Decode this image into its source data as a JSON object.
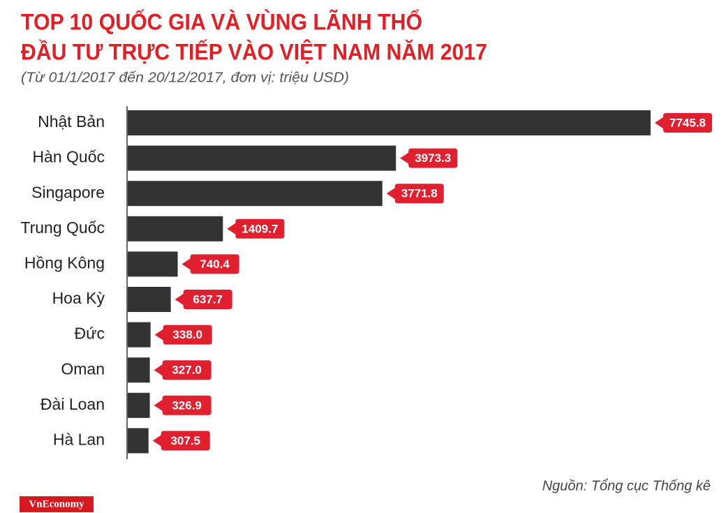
{
  "chart_data": {
    "type": "barh",
    "title": [
      "TOP 10 QUỐC GIA VÀ VÙNG LÃNH THỔ",
      "ĐẦU TƯ TRỰC TIẾP VÀO VIỆT NAM NĂM 2017"
    ],
    "subtitle": "(Từ 01/1/2017 đến 20/12/2017, đơn vị: triệu USD)",
    "categories": [
      "Nhật Bản",
      "Hàn Quốc",
      "Singapore",
      "Trung Quốc",
      "Hồng Kông",
      "Hoa Kỳ",
      "Đức",
      "Oman",
      "Đài Loan",
      "Hà Lan"
    ],
    "values": [
      7745.8,
      3973.3,
      3771.8,
      1409.7,
      740.4,
      637.7,
      338.0,
      327.0,
      326.9,
      307.5
    ],
    "value_labels": [
      "7745.8",
      "3973.3",
      "3771.8",
      "1409.7",
      "740.4",
      "637.7",
      "338.0",
      "327.0",
      "326.9",
      "307.5"
    ],
    "color": "#333333",
    "label_color": "#e0202e",
    "source": "Nguồn: Tổng cục Thống kê",
    "brand": "VnEconomy"
  }
}
